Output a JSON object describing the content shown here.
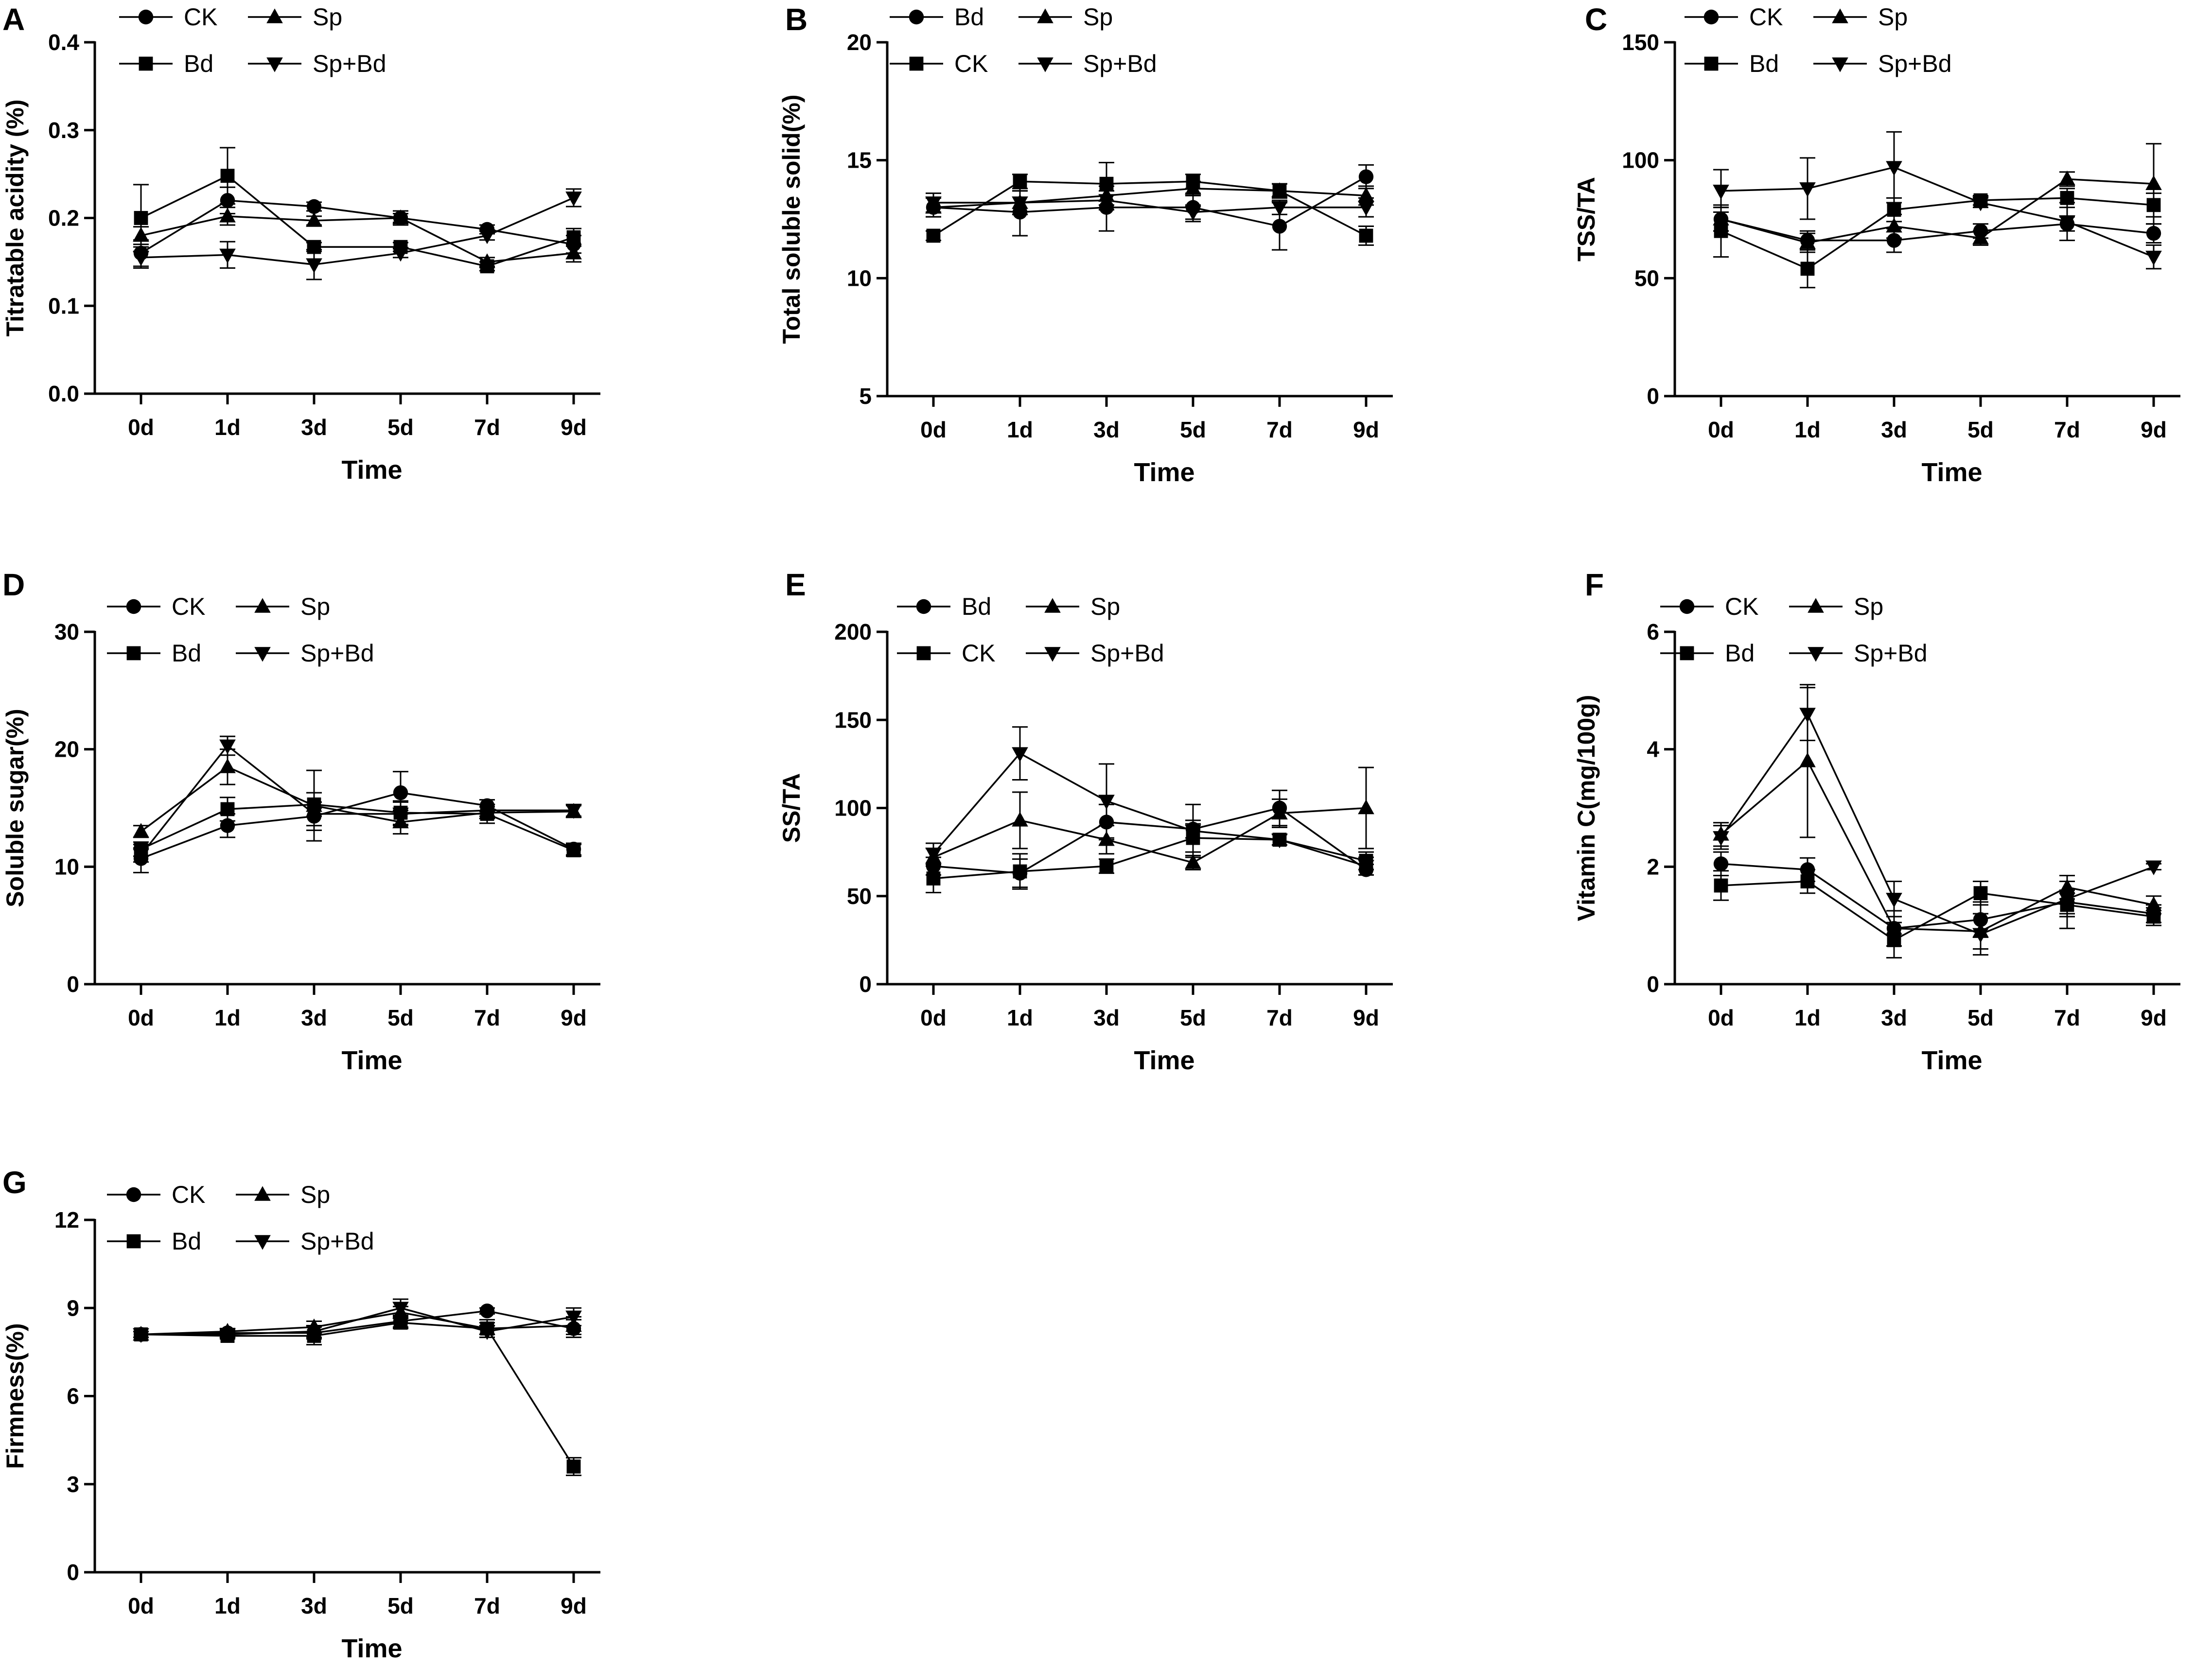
{
  "figure": {
    "x_axis_title": "Time",
    "x_categories": [
      "0d",
      "1d",
      "3d",
      "5d",
      "7d",
      "9d"
    ]
  },
  "chart_data": [
    {
      "type": "line",
      "panel": "A",
      "ylabel": "Titratable acidity (%)",
      "xlabel": "Time",
      "ylim": [
        0,
        0.4
      ],
      "yticks": [
        "0.0",
        "0.1",
        "0.2",
        "0.3",
        "0.4"
      ],
      "categories": [
        "0d",
        "1d",
        "3d",
        "5d",
        "7d",
        "9d"
      ],
      "legend_order": [
        "CK",
        "Sp",
        "Bd",
        "Sp+Bd"
      ],
      "series": [
        {
          "name": "CK",
          "marker": "circle",
          "values": [
            0.16,
            0.22,
            0.213,
            0.2,
            0.187,
            0.17
          ],
          "errors": [
            0.015,
            0.015,
            0.005,
            0.008,
            0.005,
            0.01
          ]
        },
        {
          "name": "Sp",
          "marker": "triangle-up",
          "values": [
            0.18,
            0.202,
            0.197,
            0.2,
            0.15,
            0.16
          ],
          "errors": [
            0.01,
            0.01,
            0.005,
            0.005,
            0.005,
            0.01
          ]
        },
        {
          "name": "Bd",
          "marker": "square",
          "values": [
            0.2,
            0.248,
            0.167,
            0.167,
            0.145,
            0.178
          ],
          "errors": [
            0.038,
            0.032,
            0.005,
            0.005,
            0.005,
            0.01
          ]
        },
        {
          "name": "Sp+Bd",
          "marker": "triangle-down",
          "values": [
            0.155,
            0.158,
            0.147,
            0.16,
            0.18,
            0.223
          ],
          "errors": [
            0.012,
            0.015,
            0.017,
            0.005,
            0.005,
            0.01
          ]
        }
      ]
    },
    {
      "type": "line",
      "panel": "B",
      "ylabel": "Total soluble solid(%)",
      "xlabel": "Time",
      "ylim": [
        5,
        20
      ],
      "yticks": [
        "5",
        "10",
        "15",
        "20"
      ],
      "categories": [
        "0d",
        "1d",
        "3d",
        "5d",
        "7d",
        "9d"
      ],
      "legend_order": [
        "Bd",
        "Sp",
        "CK",
        "Sp+Bd"
      ],
      "series": [
        {
          "name": "Bd",
          "marker": "circle",
          "values": [
            13.0,
            12.8,
            13.0,
            13.0,
            12.2,
            14.3
          ],
          "errors": [
            0.4,
            1.0,
            1.0,
            0.6,
            1.0,
            0.5
          ]
        },
        {
          "name": "Sp",
          "marker": "triangle-up",
          "values": [
            13.0,
            13.2,
            13.5,
            13.8,
            13.7,
            13.5
          ],
          "errors": [
            0.4,
            0.5,
            0.4,
            0.3,
            0.3,
            0.4
          ]
        },
        {
          "name": "CK",
          "marker": "square",
          "values": [
            11.8,
            14.1,
            14.0,
            14.1,
            13.7,
            11.8
          ],
          "errors": [
            0.2,
            0.3,
            0.9,
            0.3,
            0.3,
            0.4
          ]
        },
        {
          "name": "Sp+Bd",
          "marker": "triangle-down",
          "values": [
            13.2,
            13.2,
            13.3,
            12.8,
            13.0,
            13.0
          ],
          "errors": [
            0.4,
            0.5,
            0.4,
            0.3,
            0.3,
            0.4
          ]
        }
      ]
    },
    {
      "type": "line",
      "panel": "C",
      "ylabel": "TSS/TA",
      "xlabel": "Time",
      "ylim": [
        0,
        150
      ],
      "yticks": [
        "0",
        "50",
        "100",
        "150"
      ],
      "categories": [
        "0d",
        "1d",
        "3d",
        "5d",
        "7d",
        "9d"
      ],
      "legend_order": [
        "CK",
        "Sp",
        "Bd",
        "Sp+Bd"
      ],
      "series": [
        {
          "name": "CK",
          "marker": "circle",
          "values": [
            75,
            66,
            66,
            70,
            73,
            69
          ],
          "errors": [
            5,
            4,
            5,
            3,
            3,
            4
          ]
        },
        {
          "name": "Sp",
          "marker": "triangle-up",
          "values": [
            75,
            65,
            72,
            67,
            92,
            90
          ],
          "errors": [
            5,
            4,
            5,
            3,
            3,
            17
          ]
        },
        {
          "name": "Bd",
          "marker": "square",
          "values": [
            70,
            54,
            79,
            83,
            84,
            81
          ],
          "errors": [
            11,
            8,
            5,
            2,
            4,
            5
          ]
        },
        {
          "name": "Sp+Bd",
          "marker": "triangle-down",
          "values": [
            87,
            88,
            97,
            82,
            74,
            59
          ],
          "errors": [
            9,
            13,
            15,
            2,
            8,
            5
          ]
        }
      ]
    },
    {
      "type": "line",
      "panel": "D",
      "ylabel": "Soluble sugar(%)",
      "xlabel": "Time",
      "ylim": [
        0,
        30
      ],
      "yticks": [
        "0",
        "10",
        "20",
        "30"
      ],
      "categories": [
        "0d",
        "1d",
        "3d",
        "5d",
        "7d",
        "9d"
      ],
      "legend_order": [
        "CK",
        "Sp",
        "Bd",
        "Sp+Bd"
      ],
      "series": [
        {
          "name": "CK",
          "marker": "circle",
          "values": [
            10.7,
            13.5,
            14.3,
            16.3,
            15.2,
            11.5
          ],
          "errors": [
            1.2,
            1.0,
            1.2,
            1.8,
            0.5,
            0.5
          ]
        },
        {
          "name": "Sp",
          "marker": "triangle-up",
          "values": [
            13.0,
            18.5,
            15.2,
            13.8,
            14.6,
            14.7
          ],
          "errors": [
            0.5,
            1.5,
            3.0,
            1.0,
            0.5,
            0.5
          ]
        },
        {
          "name": "Bd",
          "marker": "square",
          "values": [
            11.5,
            14.9,
            15.3,
            14.6,
            14.5,
            11.4
          ],
          "errors": [
            0.6,
            1.0,
            1.0,
            1.0,
            0.8,
            0.5
          ]
        },
        {
          "name": "Sp+Bd",
          "marker": "triangle-down",
          "values": [
            11.0,
            20.3,
            14.5,
            14.5,
            14.8,
            14.8
          ],
          "errors": [
            0.6,
            0.8,
            1.0,
            1.0,
            0.5,
            0.5
          ]
        }
      ]
    },
    {
      "type": "line",
      "panel": "E",
      "ylabel": "SS/TA",
      "xlabel": "Time",
      "ylim": [
        0,
        200
      ],
      "yticks": [
        "0",
        "50",
        "100",
        "150",
        "200"
      ],
      "categories": [
        "0d",
        "1d",
        "3d",
        "5d",
        "7d",
        "9d"
      ],
      "legend_order": [
        "Bd",
        "Sp",
        "CK",
        "Sp+Bd"
      ],
      "series": [
        {
          "name": "Bd",
          "marker": "circle",
          "values": [
            67,
            63,
            92,
            88,
            100,
            65
          ],
          "errors": [
            5,
            8,
            10,
            5,
            10,
            3
          ]
        },
        {
          "name": "Sp",
          "marker": "triangle-up",
          "values": [
            72,
            93,
            82,
            69,
            97,
            100
          ],
          "errors": [
            5,
            16,
            8,
            4,
            8,
            23
          ]
        },
        {
          "name": "CK",
          "marker": "square",
          "values": [
            60,
            64,
            67,
            83,
            82,
            70
          ],
          "errors": [
            8,
            10,
            4,
            8,
            3,
            5
          ]
        },
        {
          "name": "Sp+Bd",
          "marker": "triangle-down",
          "values": [
            74,
            131,
            104,
            87,
            82,
            67
          ],
          "errors": [
            6,
            15,
            21,
            15,
            3,
            5
          ]
        }
      ]
    },
    {
      "type": "line",
      "panel": "F",
      "ylabel": "Vitamin C(mg/100g)",
      "xlabel": "Time",
      "ylim": [
        0,
        6
      ],
      "yticks": [
        "0",
        "2",
        "4",
        "6"
      ],
      "categories": [
        "0d",
        "1d",
        "3d",
        "5d",
        "7d",
        "9d"
      ],
      "legend_order": [
        "CK",
        "Sp",
        "Bd",
        "Sp+Bd"
      ],
      "series": [
        {
          "name": "CK",
          "marker": "circle",
          "values": [
            2.05,
            1.95,
            0.95,
            1.1,
            1.4,
            1.2
          ],
          "errors": [
            0.2,
            0.2,
            0.3,
            0.3,
            0.2,
            0.15
          ]
        },
        {
          "name": "Sp",
          "marker": "triangle-up",
          "values": [
            2.55,
            3.8,
            0.95,
            0.9,
            1.65,
            1.35
          ],
          "errors": [
            0.2,
            1.3,
            0.3,
            0.3,
            0.2,
            0.15
          ]
        },
        {
          "name": "Bd",
          "marker": "square",
          "values": [
            1.68,
            1.75,
            0.75,
            1.55,
            1.35,
            1.15
          ],
          "errors": [
            0.25,
            0.2,
            0.3,
            0.2,
            0.4,
            0.15
          ]
        },
        {
          "name": "Sp+Bd",
          "marker": "triangle-down",
          "values": [
            2.5,
            4.6,
            1.45,
            0.85,
            1.45,
            2.0
          ],
          "errors": [
            0.2,
            0.45,
            0.3,
            0.35,
            0.3,
            0.05
          ]
        }
      ]
    },
    {
      "type": "line",
      "panel": "G",
      "ylabel": "Firmness(%)",
      "xlabel": "Time",
      "ylim": [
        0,
        12
      ],
      "yticks": [
        "0",
        "3",
        "6",
        "9",
        "12"
      ],
      "categories": [
        "0d",
        "1d",
        "3d",
        "5d",
        "7d",
        "9d"
      ],
      "legend_order": [
        "CK",
        "Sp",
        "Bd",
        "Sp+Bd"
      ],
      "series": [
        {
          "name": "CK",
          "marker": "circle",
          "values": [
            8.1,
            8.15,
            8.15,
            8.55,
            8.9,
            8.3
          ],
          "errors": [
            0.1,
            0.1,
            0.2,
            0.2,
            0.1,
            0.3
          ]
        },
        {
          "name": "Sp",
          "marker": "triangle-up",
          "values": [
            8.1,
            8.2,
            8.35,
            8.85,
            8.3,
            8.4
          ],
          "errors": [
            0.1,
            0.1,
            0.2,
            0.2,
            0.2,
            0.3
          ]
        },
        {
          "name": "Bd",
          "marker": "square",
          "values": [
            8.1,
            8.05,
            8.05,
            8.5,
            8.3,
            3.6
          ],
          "errors": [
            0.1,
            0.1,
            0.3,
            0.2,
            0.3,
            0.3
          ]
        },
        {
          "name": "Sp+Bd",
          "marker": "triangle-down",
          "values": [
            8.1,
            8.1,
            8.2,
            9.0,
            8.2,
            8.7
          ],
          "errors": [
            0.1,
            0.1,
            0.2,
            0.3,
            0.2,
            0.3
          ]
        }
      ]
    }
  ]
}
